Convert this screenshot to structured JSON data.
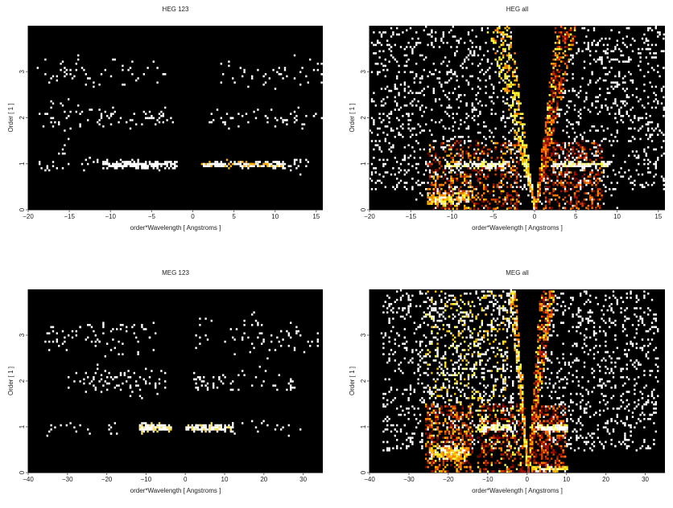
{
  "chart_data": [
    {
      "type": "heatmap",
      "title": "HEG 123",
      "xlabel": "order*Wavelength [ Angstroms ]",
      "ylabel": "Order [ 1 ]",
      "xlim": [
        -20,
        15.8
      ],
      "ylim": [
        0,
        4
      ],
      "xticks": [
        -20,
        -15,
        -10,
        -5,
        0,
        5,
        10,
        15
      ],
      "yticks": [
        0,
        1,
        2,
        3
      ],
      "background": "#000000",
      "seed": 11,
      "components": [
        {
          "type": "band",
          "x": [
            -11,
            -2
          ],
          "center": 1,
          "spread": 0.04,
          "n": 190,
          "colors": [
            "#ffffff"
          ]
        },
        {
          "type": "band",
          "x": [
            1,
            11
          ],
          "center": 1,
          "spread": 0.035,
          "n": 170,
          "colors": [
            "#ffffff",
            "#ffffff",
            "#ffffff",
            "#ffb000"
          ]
        },
        {
          "type": "band",
          "x": [
            -19,
            -11
          ],
          "center": 1,
          "spread": 0.1,
          "n": 22,
          "colors": [
            "#ffffff"
          ]
        },
        {
          "type": "band",
          "x": [
            11,
            14
          ],
          "center": 1,
          "spread": 0.08,
          "n": 18,
          "colors": [
            "#ffffff"
          ]
        },
        {
          "type": "band",
          "x": [
            -19,
            -2.5
          ],
          "center": 2,
          "spread": 0.12,
          "n": 75,
          "colors": [
            "#ffffff"
          ]
        },
        {
          "type": "band",
          "x": [
            2,
            16
          ],
          "center": 2,
          "spread": 0.1,
          "n": 55,
          "colors": [
            "#ffffff"
          ]
        },
        {
          "type": "band",
          "x": [
            -19,
            -3
          ],
          "center": 3,
          "spread": 0.18,
          "n": 55,
          "colors": [
            "#ffffff"
          ]
        },
        {
          "type": "band",
          "x": [
            3,
            16
          ],
          "center": 3,
          "spread": 0.18,
          "n": 45,
          "colors": [
            "#ffffff"
          ]
        },
        {
          "type": "scatter",
          "x": [
            -18,
            -14
          ],
          "y": [
            1.1,
            2.5
          ],
          "n": 15,
          "colors": [
            "#ffffff"
          ]
        }
      ]
    },
    {
      "type": "heatmap",
      "title": "HEG all",
      "xlabel": "order*Wavelength [ Angstroms ]",
      "ylabel": "Order [ 1 ]",
      "xlim": [
        -20,
        15.8
      ],
      "ylim": [
        0,
        4
      ],
      "xticks": [
        -20,
        -15,
        -10,
        -5,
        0,
        5,
        10,
        15
      ],
      "yticks": [
        0,
        1,
        2,
        3
      ],
      "background": "#000000",
      "seed": 23,
      "components": [
        {
          "type": "scatter",
          "x": [
            -20,
            15.8
          ],
          "y": [
            0.45,
            4
          ],
          "n": 1700,
          "exclude_slopes": [
            -1.5,
            1.25
          ],
          "colors": [
            "#ffffff"
          ]
        },
        {
          "type": "scatter",
          "x": [
            -15,
            10
          ],
          "y": [
            0.05,
            0.5
          ],
          "n": 60,
          "exclude_slopes": [
            -1.5,
            1.25
          ],
          "colors": [
            "#ffffff"
          ]
        },
        {
          "type": "wedge",
          "top": [
            -6,
            -3
          ],
          "n": 520,
          "colors": [
            "#ffff40",
            "#ffc000",
            "#ffffff",
            "#ff8000",
            "#ffff40"
          ]
        },
        {
          "type": "wedge",
          "top": [
            2.5,
            5
          ],
          "n": 560,
          "colors": [
            "#ff6000",
            "#c02000",
            "#ffa000",
            "#700000",
            "#ffff40"
          ]
        },
        {
          "type": "scatter",
          "x": [
            -13,
            -2
          ],
          "y": [
            0,
            1.5
          ],
          "n": 520,
          "exclude_slopes": [
            -0.75,
            0.625
          ],
          "colors": [
            "#700000",
            "#a01000",
            "#d04000",
            "#ff8000",
            "#ffc000"
          ]
        },
        {
          "type": "scatter",
          "x": [
            1,
            8
          ],
          "y": [
            0,
            1.5
          ],
          "n": 360,
          "exclude_slopes": [
            -0.75,
            0.625
          ],
          "colors": [
            "#700000",
            "#a01000",
            "#d04000",
            "#ff8000"
          ]
        },
        {
          "type": "band",
          "x": [
            -11,
            -3
          ],
          "center": 1,
          "spread": 0.035,
          "n": 130,
          "colors": [
            "#ffffff",
            "#ffffff",
            "#ffff40"
          ]
        },
        {
          "type": "band",
          "x": [
            2,
            9
          ],
          "center": 1,
          "spread": 0.035,
          "n": 110,
          "colors": [
            "#ffffff",
            "#ffffff",
            "#ffff40"
          ]
        },
        {
          "type": "band",
          "x": [
            -13,
            -8
          ],
          "center": 0.25,
          "spread": 0.08,
          "n": 170,
          "colors": [
            "#ffffff",
            "#ffff40",
            "#ffc000",
            "#ff8000"
          ]
        }
      ]
    },
    {
      "type": "heatmap",
      "title": "MEG 123",
      "xlabel": "order*Wavelength [ Angstroms ]",
      "ylabel": "Order [ 1 ]",
      "xlim": [
        -40,
        35
      ],
      "ylim": [
        0,
        4
      ],
      "xticks": [
        -40,
        -30,
        -20,
        -10,
        0,
        10,
        20,
        30
      ],
      "yticks": [
        0,
        1,
        2,
        3
      ],
      "background": "#000000",
      "seed": 37,
      "components": [
        {
          "type": "band",
          "x": [
            -12,
            -4
          ],
          "center": 1,
          "spread": 0.04,
          "n": 170,
          "colors": [
            "#ffffff",
            "#ffffff",
            "#ffe060"
          ]
        },
        {
          "type": "band",
          "x": [
            0,
            12
          ],
          "center": 1,
          "spread": 0.035,
          "n": 150,
          "colors": [
            "#ffffff",
            "#ffffff",
            "#ffe060"
          ]
        },
        {
          "type": "band",
          "x": [
            -36,
            -12
          ],
          "center": 1,
          "spread": 0.1,
          "n": 20,
          "colors": [
            "#ffffff"
          ]
        },
        {
          "type": "band",
          "x": [
            12,
            30
          ],
          "center": 1,
          "spread": 0.1,
          "n": 15,
          "colors": [
            "#ffffff"
          ]
        },
        {
          "type": "band",
          "x": [
            -30,
            -5
          ],
          "center": 2,
          "spread": 0.14,
          "n": 80,
          "colors": [
            "#ffffff"
          ]
        },
        {
          "type": "band",
          "x": [
            2,
            28
          ],
          "center": 2,
          "spread": 0.12,
          "n": 60,
          "colors": [
            "#ffffff"
          ]
        },
        {
          "type": "band",
          "x": [
            -36,
            -5
          ],
          "center": 3,
          "spread": 0.2,
          "n": 75,
          "colors": [
            "#ffffff"
          ]
        },
        {
          "type": "band",
          "x": [
            2,
            34
          ],
          "center": 3,
          "spread": 0.2,
          "n": 70,
          "colors": [
            "#ffffff"
          ]
        }
      ]
    },
    {
      "type": "heatmap",
      "title": "MEG all",
      "xlabel": "order*Wavelength [ Angstroms ]",
      "ylabel": "Order [ 1 ]",
      "xlim": [
        -40,
        35
      ],
      "ylim": [
        0,
        4
      ],
      "xticks": [
        -40,
        -30,
        -20,
        -10,
        0,
        10,
        20,
        30
      ],
      "yticks": [
        0,
        1,
        2,
        3
      ],
      "background": "#000000",
      "seed": 51,
      "components": [
        {
          "type": "scatter",
          "x": [
            -37,
            33
          ],
          "y": [
            0.5,
            4
          ],
          "n": 1700,
          "exclude_slopes": [
            -1.2,
            0.9
          ],
          "colors": [
            "#ffffff"
          ]
        },
        {
          "type": "scatter",
          "x": [
            -26,
            -5
          ],
          "y": [
            1.5,
            4
          ],
          "n": 350,
          "exclude_slopes": [
            -1.2,
            0.9
          ],
          "colors": [
            "#ffff40",
            "#ffc000",
            "#ffffff"
          ]
        },
        {
          "type": "wedge",
          "top": [
            -4.8,
            -3
          ],
          "n": 360,
          "colors": [
            "#ffff40",
            "#ffc000",
            "#ffffff",
            "#ff8000"
          ]
        },
        {
          "type": "wedge",
          "top": [
            3.2,
            7
          ],
          "n": 520,
          "colors": [
            "#ff6000",
            "#c02000",
            "#ffa000",
            "#700000",
            "#ffff40"
          ]
        },
        {
          "type": "scatter",
          "x": [
            -26,
            -14
          ],
          "y": [
            0,
            1.5
          ],
          "n": 420,
          "colors": [
            "#700000",
            "#a01000",
            "#d04000",
            "#ff8000",
            "#ffc000"
          ]
        },
        {
          "type": "scatter",
          "x": [
            -13,
            -1
          ],
          "y": [
            0,
            1.5
          ],
          "n": 320,
          "exclude_slopes": [
            -0.4,
            0.3
          ],
          "colors": [
            "#700000",
            "#a01000",
            "#d04000",
            "#ff8000",
            "#ffff40"
          ]
        },
        {
          "type": "scatter",
          "x": [
            1,
            9.5
          ],
          "y": [
            0,
            1.5
          ],
          "n": 340,
          "exclude_slopes": [
            -0.4,
            0.3
          ],
          "colors": [
            "#700000",
            "#a01000",
            "#d04000",
            "#ff8000"
          ]
        },
        {
          "type": "band",
          "x": [
            -13,
            -3
          ],
          "center": 1,
          "spread": 0.035,
          "n": 140,
          "colors": [
            "#ffffff",
            "#ffffff",
            "#ffff40"
          ]
        },
        {
          "type": "band",
          "x": [
            2,
            10
          ],
          "center": 1,
          "spread": 0.035,
          "n": 120,
          "colors": [
            "#ffffff",
            "#ffffff",
            "#ffff40"
          ]
        },
        {
          "type": "band",
          "x": [
            -25,
            -15
          ],
          "center": 0.45,
          "spread": 0.08,
          "n": 200,
          "colors": [
            "#ffffff",
            "#ffff40",
            "#ffc000",
            "#ff8000"
          ]
        },
        {
          "type": "band",
          "x": [
            1,
            10
          ],
          "center": 0.1,
          "spread": 0.03,
          "n": 90,
          "colors": [
            "#ffffff",
            "#ffff40",
            "#ffc000"
          ]
        }
      ]
    }
  ]
}
